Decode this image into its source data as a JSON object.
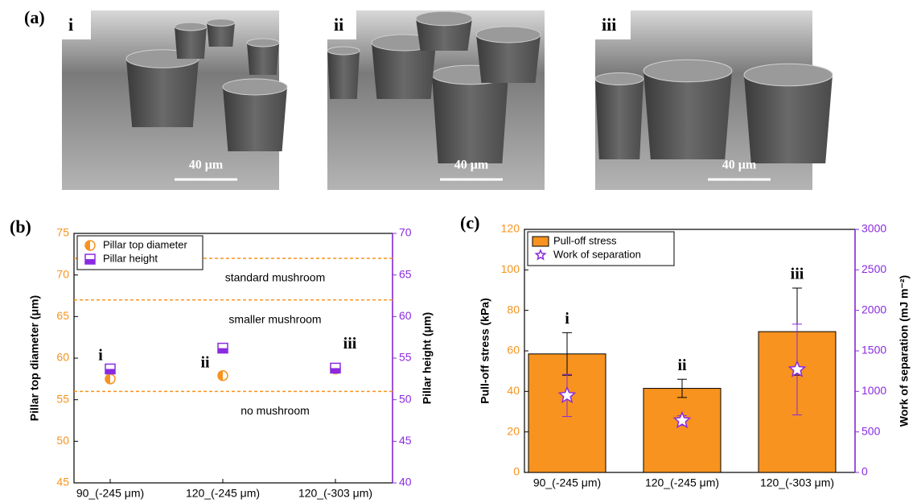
{
  "panel_label": "(a)",
  "images": [
    {
      "label": "i",
      "scale_bar": "40 μm"
    },
    {
      "label": "ii",
      "scale_bar": "40 μm"
    },
    {
      "label": "iii",
      "scale_bar": "40 μm"
    }
  ],
  "chart_data": [
    {
      "type": "scatter",
      "panel": "(b)",
      "categories": [
        "90_(-245 μm)",
        "120_(-245 μm)",
        "120_(-303 μm)"
      ],
      "ylabel": "Pillar top diameter (μm)",
      "y2label": "Pillar height (μm)",
      "ylim": [
        45,
        75
      ],
      "yticks": [
        45,
        50,
        55,
        60,
        65,
        70,
        75
      ],
      "y2lim": [
        40,
        70
      ],
      "y2ticks": [
        40,
        45,
        50,
        55,
        60,
        65,
        70
      ],
      "series": [
        {
          "name": "Pillar top diameter",
          "color": "#f7931e",
          "marker": "circle",
          "values": [
            57.5,
            57.9,
            58.7
          ]
        },
        {
          "name": "Pillar height",
          "color": "#8a2be2",
          "marker": "square",
          "axis": "y2",
          "values": [
            53.7,
            56.2,
            53.8
          ]
        }
      ],
      "reference_lines": [
        {
          "value": 72,
          "label": "standard mushroom"
        },
        {
          "value": 67,
          "label": "smaller mushroom"
        },
        {
          "value": 56,
          "label": "no mushroom"
        }
      ],
      "reference_color": "#f7931e",
      "annotations": [
        "i",
        "ii",
        "iii"
      ],
      "legend": "upper left"
    },
    {
      "type": "bar",
      "panel": "(c)",
      "categories": [
        "90_(-245 μm)",
        "120_(-245 μm)",
        "120_(-303 μm)"
      ],
      "ylabel": "Pull-off stress (kPa)",
      "y2label": "Work of separation (mJ m⁻²)",
      "ylim": [
        0,
        120
      ],
      "yticks": [
        0,
        20,
        40,
        60,
        80,
        100,
        120
      ],
      "y2lim": [
        0,
        3000
      ],
      "y2ticks": [
        0,
        500,
        1000,
        1500,
        2000,
        2500,
        3000
      ],
      "series": [
        {
          "name": "Pull-off stress",
          "color": "#f7931e",
          "marker": "bar",
          "values": [
            58.5,
            41.5,
            69.5
          ],
          "errors": [
            10.5,
            4.5,
            21.5
          ]
        },
        {
          "name": "Work of separation",
          "color": "#8a2be2",
          "marker": "star",
          "axis": "y2",
          "values": [
            950,
            640,
            1270
          ],
          "errors": [
            260,
            60,
            560
          ]
        }
      ],
      "annotations": [
        "i",
        "ii",
        "iii"
      ],
      "legend": "upper left"
    }
  ]
}
